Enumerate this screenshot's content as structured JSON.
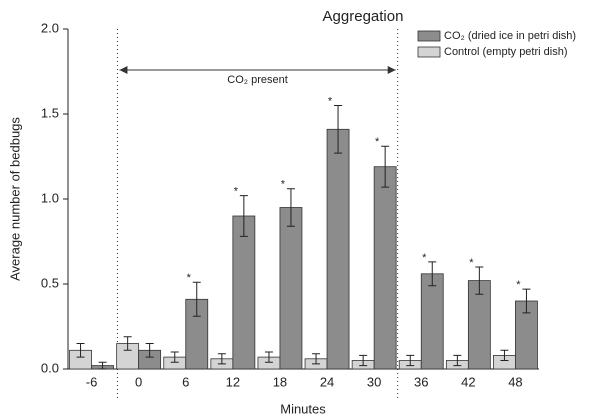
{
  "chart_data": {
    "type": "bar",
    "title": "Aggregation",
    "xlabel": "Minutes",
    "ylabel": "Average number of bedbugs",
    "annotation": "CO₂ present",
    "categories": [
      "-6",
      "0",
      "6",
      "12",
      "18",
      "24",
      "30",
      "36",
      "42",
      "48"
    ],
    "series": [
      {
        "name": "CO₂ (dried ice in petri dish)",
        "color": "#8c8c8c",
        "values": [
          0.02,
          0.11,
          0.41,
          0.9,
          0.95,
          1.41,
          1.19,
          0.56,
          0.52,
          0.4
        ],
        "errors": [
          0.02,
          0.04,
          0.1,
          0.12,
          0.11,
          0.14,
          0.12,
          0.07,
          0.08,
          0.07
        ],
        "markers": [
          null,
          null,
          "*",
          "*",
          "*",
          "*",
          "*",
          "*",
          "*",
          "*"
        ]
      },
      {
        "name": "Control (empty petri dish)",
        "color": "#d4d4d4",
        "values": [
          0.11,
          0.15,
          0.07,
          0.06,
          0.07,
          0.06,
          0.05,
          0.05,
          0.05,
          0.08
        ],
        "errors": [
          0.04,
          0.04,
          0.03,
          0.03,
          0.03,
          0.03,
          0.03,
          0.03,
          0.03,
          0.03
        ]
      }
    ],
    "ylim": [
      0,
      2
    ],
    "yticks": [
      {
        "value": 0,
        "label": "0.0"
      },
      0.5,
      {
        "value": 1,
        "label": "1.0"
      },
      1.5,
      {
        "value": 2,
        "label": "2.0"
      }
    ],
    "legend": "upper right"
  }
}
